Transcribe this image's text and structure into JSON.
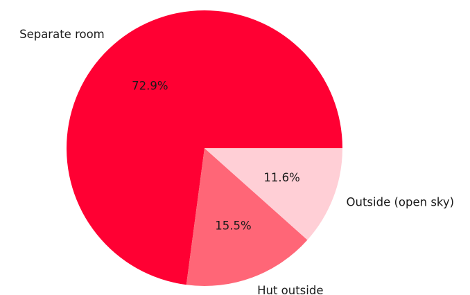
{
  "chart_data": {
    "type": "pie",
    "title": "",
    "categories": [
      "Separate room",
      "Hut outside",
      "Outside (open sky)"
    ],
    "values": [
      72.9,
      15.5,
      11.6
    ],
    "value_labels": [
      "72.9%",
      "15.5%",
      "11.6%"
    ],
    "colors": [
      "#ff0033",
      "#ff6677",
      "#ffcfd6"
    ],
    "start_angle_deg": 0,
    "direction": "counterclockwise",
    "legend": "none"
  }
}
